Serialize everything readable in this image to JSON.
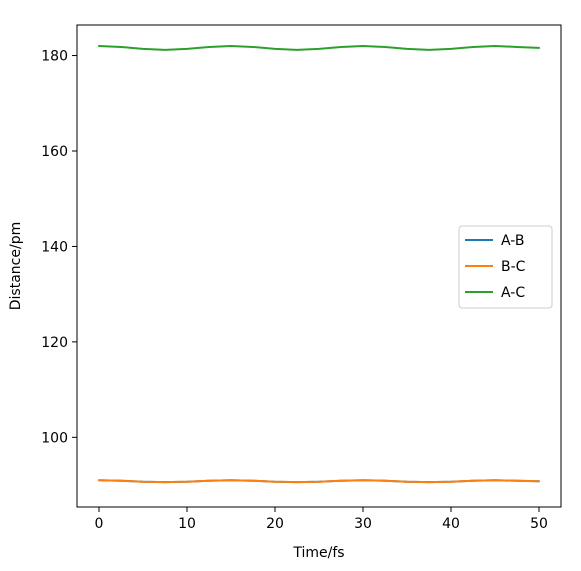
{
  "chart_data": {
    "type": "line",
    "title": "",
    "xlabel": "Time/fs",
    "ylabel": "Distance/pm",
    "xlim": [
      -2.5,
      52.5
    ],
    "ylim": [
      85.4,
      186.4
    ],
    "xticks": [
      0,
      10,
      20,
      30,
      40,
      50
    ],
    "yticks": [
      100,
      120,
      140,
      160,
      180
    ],
    "grid": false,
    "legend_position": "center-right",
    "x": [
      0,
      2.5,
      5,
      7.5,
      10,
      12.5,
      15,
      17.5,
      20,
      22.5,
      25,
      27.5,
      30,
      32.5,
      35,
      37.5,
      40,
      42.5,
      45,
      47.5,
      50
    ],
    "series": [
      {
        "name": "A-B",
        "color": "#1f77b4",
        "values": [
          91.0,
          90.9,
          90.7,
          90.6,
          90.7,
          90.9,
          91.0,
          90.9,
          90.7,
          90.6,
          90.7,
          90.9,
          91.0,
          90.9,
          90.7,
          90.6,
          90.7,
          90.9,
          91.0,
          90.9,
          90.8
        ]
      },
      {
        "name": "B-C",
        "color": "#ff7f0e",
        "values": [
          91.0,
          90.9,
          90.7,
          90.6,
          90.7,
          90.9,
          91.0,
          90.9,
          90.7,
          90.6,
          90.7,
          90.9,
          91.0,
          90.9,
          90.7,
          90.6,
          90.7,
          90.9,
          91.0,
          90.9,
          90.8
        ]
      },
      {
        "name": "A-C",
        "color": "#2ca02c",
        "values": [
          182.0,
          181.8,
          181.4,
          181.2,
          181.4,
          181.8,
          182.0,
          181.8,
          181.4,
          181.2,
          181.4,
          181.8,
          182.0,
          181.8,
          181.4,
          181.2,
          181.4,
          181.8,
          182.0,
          181.8,
          181.6
        ]
      }
    ]
  }
}
